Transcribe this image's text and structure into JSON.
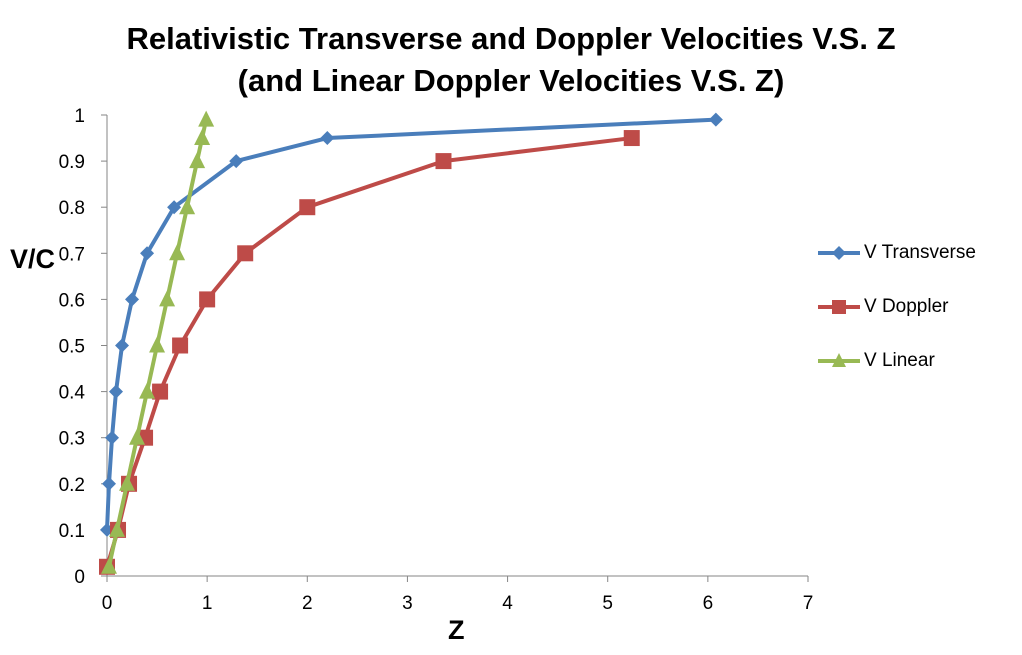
{
  "chart_data": {
    "type": "line",
    "title_line1": "Relativistic Transverse and Doppler Velocities V.S. Z",
    "title_line2": "(and Linear Doppler Velocities V.S. Z)",
    "xlabel": "Z",
    "ylabel": "V/C",
    "xlim": [
      0,
      7
    ],
    "ylim": [
      0,
      1
    ],
    "x_ticks": [
      "0",
      "1",
      "2",
      "3",
      "4",
      "5",
      "6",
      "7"
    ],
    "y_ticks": [
      "0",
      "0.1",
      "0.2",
      "0.3",
      "0.4",
      "0.5",
      "0.6",
      "0.7",
      "0.8",
      "0.9",
      "1"
    ],
    "grid": false,
    "legend_position": "right",
    "series": [
      {
        "name": "V Transverse",
        "color": "#4a7ebb",
        "marker": "diamond",
        "points": [
          [
            0,
            0.1
          ],
          [
            0.02,
            0.2
          ],
          [
            0.05,
            0.3
          ],
          [
            0.09,
            0.4
          ],
          [
            0.15,
            0.5
          ],
          [
            0.25,
            0.6
          ],
          [
            0.4,
            0.7
          ],
          [
            0.67,
            0.8
          ],
          [
            1.29,
            0.9
          ],
          [
            2.2,
            0.95
          ],
          [
            6.08,
            0.99
          ]
        ]
      },
      {
        "name": "V Doppler",
        "color": "#be4b48",
        "marker": "square",
        "points": [
          [
            0,
            0.02
          ],
          [
            0.11,
            0.1
          ],
          [
            0.22,
            0.2
          ],
          [
            0.38,
            0.3
          ],
          [
            0.53,
            0.4
          ],
          [
            0.73,
            0.5
          ],
          [
            1.0,
            0.6
          ],
          [
            1.38,
            0.7
          ],
          [
            2.0,
            0.8
          ],
          [
            3.36,
            0.9
          ],
          [
            5.24,
            0.95
          ]
        ]
      },
      {
        "name": "V Linear",
        "color": "#98b954",
        "marker": "triangle",
        "points": [
          [
            0.02,
            0.02
          ],
          [
            0.1,
            0.1
          ],
          [
            0.2,
            0.2
          ],
          [
            0.3,
            0.3
          ],
          [
            0.4,
            0.4
          ],
          [
            0.5,
            0.5
          ],
          [
            0.6,
            0.6
          ],
          [
            0.7,
            0.7
          ],
          [
            0.8,
            0.8
          ],
          [
            0.9,
            0.9
          ],
          [
            0.95,
            0.95
          ],
          [
            0.99,
            0.99
          ]
        ]
      }
    ]
  }
}
